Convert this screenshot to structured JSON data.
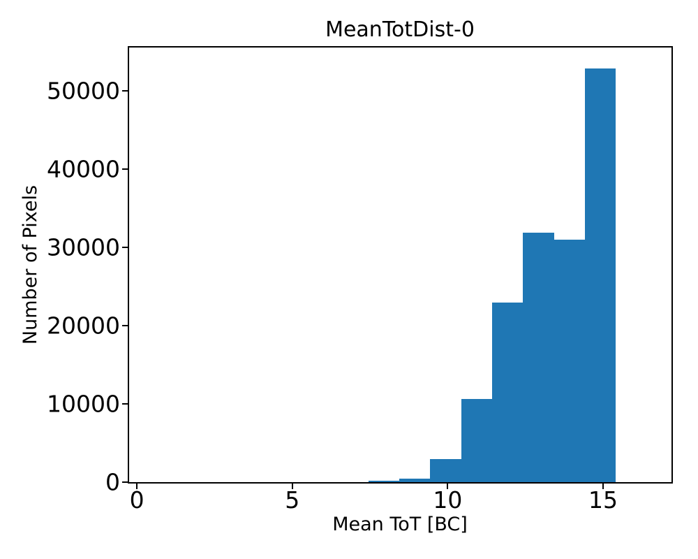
{
  "chart_data": {
    "type": "bar",
    "subtype": "histogram",
    "title": "MeanTotDist-0",
    "xlabel": "Mean ToT [BC]",
    "ylabel": "Number of Pixels",
    "bar_color": "#1f77b4",
    "axis_color": "#000000",
    "background_color": "#ffffff",
    "grid": false,
    "legend_position": "none",
    "xlim": [
      -0.25,
      17.2
    ],
    "ylim": [
      0,
      55500
    ],
    "xticks": [
      0,
      5,
      10,
      15
    ],
    "xtick_labels": [
      "0",
      "5",
      "10",
      "15"
    ],
    "yticks": [
      0,
      10000,
      20000,
      30000,
      40000,
      50000
    ],
    "ytick_labels": [
      "0",
      "10000",
      "20000",
      "30000",
      "40000",
      "50000"
    ],
    "bin_edges": [
      7.46,
      8.45,
      9.44,
      10.44,
      11.43,
      12.42,
      13.42,
      14.41,
      15.4
    ],
    "counts": [
      220,
      430,
      2930,
      10660,
      22910,
      31880,
      30990,
      52840
    ]
  }
}
